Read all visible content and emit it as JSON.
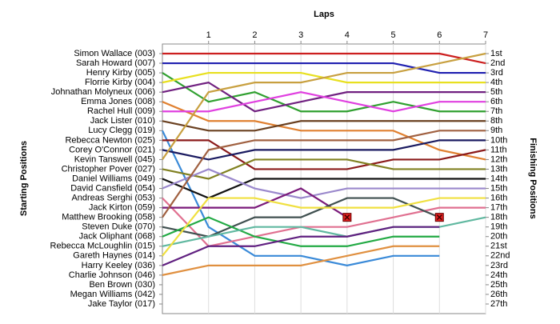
{
  "chart_data": {
    "type": "lap",
    "title": "Laps",
    "y_label_left": "Starting Positions",
    "y_label_right": "Finishing Positions",
    "x": [
      0,
      1,
      2,
      3,
      4,
      5,
      6,
      7
    ],
    "xlim": [
      0,
      7
    ],
    "xticks": [
      1,
      2,
      3,
      4,
      5,
      6,
      7
    ],
    "ylim": [
      1,
      27
    ],
    "grid": true,
    "finish_labels": [
      "1st",
      "2nd",
      "3rd",
      "4th",
      "5th",
      "6th",
      "7th",
      "8th",
      "9th",
      "10th",
      "11th",
      "12th",
      "13th",
      "14th",
      "15th",
      "16th",
      "17th",
      "18th",
      "19th",
      "20th",
      "21st",
      "22nd",
      "23rd",
      "24th",
      "25th",
      "26th",
      "27th"
    ],
    "series": [
      {
        "name": "Simon Wallace (003)",
        "color": "#cc1f1f",
        "values": [
          1,
          1,
          1,
          1,
          1,
          1,
          1,
          2
        ]
      },
      {
        "name": "Sarah Howard (007)",
        "color": "#2020b0",
        "values": [
          2,
          2,
          2,
          2,
          2,
          2,
          3,
          3
        ]
      },
      {
        "name": "Henry Kirby (005)",
        "color": "#30a030",
        "values": [
          3,
          6,
          5,
          7,
          7,
          6,
          7,
          7
        ]
      },
      {
        "name": "Florrie Kirby (004)",
        "color": "#e8e020",
        "values": [
          4,
          3,
          3,
          3,
          4,
          4,
          4,
          4
        ]
      },
      {
        "name": "Johnathan Molyneux (006)",
        "color": "#702080",
        "values": [
          5,
          4,
          7,
          6,
          5,
          5,
          5,
          5
        ]
      },
      {
        "name": "Emma Jones (008)",
        "color": "#e08030",
        "values": [
          6,
          8,
          8,
          9,
          9,
          9,
          11,
          12
        ]
      },
      {
        "name": "Rachel Hull (009)",
        "color": "#e040e0",
        "values": [
          7,
          7,
          6,
          5,
          6,
          7,
          6,
          6
        ]
      },
      {
        "name": "Jack Lister (010)",
        "color": "#6a4020",
        "values": [
          8,
          9,
          9,
          8,
          8,
          8,
          8,
          8
        ]
      },
      {
        "name": "Lucy Clegg (019)",
        "color": "#3a8ad8",
        "values": [
          9,
          19,
          22,
          22,
          23,
          22,
          22,
          null
        ]
      },
      {
        "name": "Rebecca Newton (025)",
        "color": "#8b1a1a",
        "values": [
          10,
          10,
          13,
          13,
          13,
          12,
          12,
          11
        ]
      },
      {
        "name": "Corey O'Connor (021)",
        "color": "#1a1a60",
        "values": [
          11,
          12,
          11,
          11,
          11,
          11,
          10,
          10
        ]
      },
      {
        "name": "Kevin Tanswell (045)",
        "color": "#c8a040",
        "values": [
          12,
          5,
          4,
          4,
          3,
          3,
          2,
          1
        ]
      },
      {
        "name": "Christopher Pover (027)",
        "color": "#808020",
        "values": [
          13,
          14,
          12,
          12,
          12,
          13,
          13,
          13
        ]
      },
      {
        "name": "Daniel Williams (049)",
        "color": "#111111",
        "values": [
          14,
          16,
          14,
          14,
          14,
          14,
          14,
          14
        ]
      },
      {
        "name": "David Cansfield (054)",
        "color": "#9a88cc",
        "values": [
          15,
          13,
          15,
          16,
          15,
          15,
          15,
          15
        ]
      },
      {
        "name": "Andreas Serghi (053)",
        "color": "#e07090",
        "values": [
          16,
          21,
          20,
          19,
          19,
          18,
          17,
          17
        ]
      },
      {
        "name": "Jack Kirton (059)",
        "color": "#7a1a7a",
        "values": [
          17,
          17,
          17,
          15,
          18,
          null,
          null,
          null
        ],
        "retired": true
      },
      {
        "name": "Matthew Brooking (058)",
        "color": "#a06040",
        "values": [
          18,
          11,
          10,
          10,
          10,
          10,
          9,
          9
        ]
      },
      {
        "name": "Steven Duke (070)",
        "color": "#405050",
        "values": [
          19,
          20,
          18,
          18,
          16,
          16,
          18,
          null
        ],
        "retired": true
      },
      {
        "name": "Jack Oliphant (068)",
        "color": "#22aa44",
        "values": [
          20,
          18,
          20,
          21,
          21,
          20,
          20,
          null
        ]
      },
      {
        "name": "Rebecca McLoughlin (015)",
        "color": "#60b8a0",
        "values": [
          21,
          20,
          19,
          19,
          20,
          19,
          19,
          18
        ]
      },
      {
        "name": "Gareth Haynes (014)",
        "color": "#f0e040",
        "values": [
          22,
          16,
          16,
          17,
          17,
          17,
          16,
          16
        ]
      },
      {
        "name": "Harry Keeley (036)",
        "color": "#602080",
        "values": [
          23,
          21,
          21,
          20,
          20,
          19,
          19,
          null
        ]
      },
      {
        "name": "Charlie Johnson (046)",
        "color": "#e09040",
        "values": [
          24,
          23,
          23,
          23,
          22,
          21,
          21,
          null
        ]
      },
      {
        "name": "Ben Brown (030)",
        "color": "#888888",
        "values": [
          25,
          null,
          null,
          null,
          null,
          null,
          null,
          null
        ]
      },
      {
        "name": "Megan Williams (042)",
        "color": "#888888",
        "values": [
          26,
          null,
          null,
          null,
          null,
          null,
          null,
          null
        ]
      },
      {
        "name": "Jake Taylor (017)",
        "color": "#888888",
        "values": [
          27,
          null,
          null,
          null,
          null,
          null,
          null,
          null
        ]
      }
    ]
  }
}
